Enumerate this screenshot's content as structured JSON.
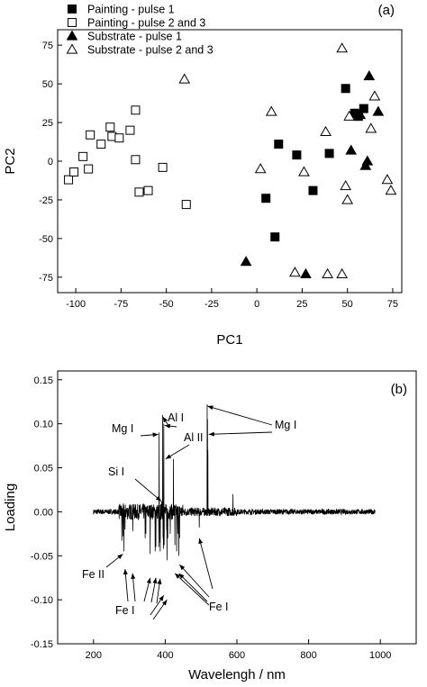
{
  "chart_data": [
    {
      "type": "scatter",
      "panel_label": "(a)",
      "xlabel": "PC1",
      "ylabel": "PC2",
      "xlim": [
        -110,
        80
      ],
      "ylim": [
        -85,
        85
      ],
      "xticks": [
        -100,
        -75,
        -50,
        -25,
        0,
        25,
        50,
        75
      ],
      "yticks": [
        -75,
        -50,
        -25,
        0,
        25,
        50,
        75
      ],
      "legend_position": "top-left",
      "series": [
        {
          "name": "Painting - pulse 1",
          "marker": "filled-square",
          "points": [
            [
              5,
              -24
            ],
            [
              10,
              -49
            ],
            [
              12,
              11
            ],
            [
              22,
              4
            ],
            [
              31,
              -19
            ],
            [
              40,
              5
            ],
            [
              49,
              47
            ],
            [
              54,
              31
            ],
            [
              56,
              29
            ],
            [
              59,
              34
            ]
          ]
        },
        {
          "name": "Painting - pulse 2 and 3",
          "marker": "open-square",
          "points": [
            [
              -104,
              -12
            ],
            [
              -101,
              -7
            ],
            [
              -96,
              3
            ],
            [
              -93,
              -5
            ],
            [
              -92,
              17
            ],
            [
              -86,
              11
            ],
            [
              -81,
              22
            ],
            [
              -80,
              16
            ],
            [
              -76,
              15
            ],
            [
              -70,
              20
            ],
            [
              -67,
              1
            ],
            [
              -67,
              33
            ],
            [
              -65,
              -20
            ],
            [
              -60,
              -19
            ],
            [
              -52,
              -4
            ],
            [
              -39,
              -28
            ]
          ]
        },
        {
          "name": "Substrate - pulse 1",
          "marker": "filled-triangle",
          "points": [
            [
              -6,
              -65
            ],
            [
              27,
              -73
            ],
            [
              52,
              7
            ],
            [
              57,
              30
            ],
            [
              60,
              -3
            ],
            [
              61,
              0
            ],
            [
              62,
              55
            ],
            [
              67,
              32
            ]
          ]
        },
        {
          "name": "Substrate - pulse 2 and 3",
          "marker": "open-triangle",
          "points": [
            [
              -40,
              53
            ],
            [
              2,
              -5
            ],
            [
              8,
              32
            ],
            [
              21,
              -72
            ],
            [
              26,
              -7
            ],
            [
              38,
              19
            ],
            [
              39,
              -73
            ],
            [
              47,
              -73
            ],
            [
              47,
              73
            ],
            [
              49,
              -16
            ],
            [
              50,
              -25
            ],
            [
              51,
              29
            ],
            [
              63,
              21
            ],
            [
              65,
              42
            ],
            [
              72,
              -12
            ],
            [
              74,
              -19
            ]
          ]
        }
      ]
    },
    {
      "type": "line",
      "panel_label": "(b)",
      "xlabel": "Wavelengh / nm",
      "ylabel": "Loading",
      "xlim": [
        100,
        1100
      ],
      "ylim": [
        -0.15,
        0.16
      ],
      "xticks": [
        200,
        400,
        600,
        800,
        1000
      ],
      "yticks": [
        -0.15,
        -0.1,
        -0.05,
        0.0,
        0.05,
        0.1,
        0.15
      ],
      "line_range": [
        200,
        985
      ],
      "noise_amplitude": 0.003,
      "peaks": [
        [
          279,
          -0.033
        ],
        [
          282,
          -0.028
        ],
        [
          285,
          -0.045
        ],
        [
          288,
          -0.02
        ],
        [
          309,
          0.008
        ],
        [
          309.5,
          -0.022
        ],
        [
          344,
          -0.03
        ],
        [
          346,
          -0.025
        ],
        [
          358,
          -0.048
        ],
        [
          372,
          -0.045
        ],
        [
          374,
          -0.04
        ],
        [
          382,
          -0.04
        ],
        [
          383,
          0.09
        ],
        [
          385,
          -0.035
        ],
        [
          386,
          -0.045
        ],
        [
          390,
          0.012
        ],
        [
          393,
          0.11
        ],
        [
          394,
          -0.03
        ],
        [
          395,
          -0.042
        ],
        [
          396,
          0.1
        ],
        [
          397,
          -0.038
        ],
        [
          404,
          -0.02
        ],
        [
          405,
          -0.055
        ],
        [
          407,
          -0.03
        ],
        [
          414,
          -0.025
        ],
        [
          423,
          0.06
        ],
        [
          427,
          -0.038
        ],
        [
          432,
          -0.045
        ],
        [
          435,
          -0.025
        ],
        [
          438,
          -0.05
        ],
        [
          440,
          -0.03
        ],
        [
          495,
          -0.018
        ],
        [
          517,
          0.122
        ],
        [
          518,
          0.105
        ],
        [
          519,
          0.07
        ],
        [
          589,
          0.02
        ]
      ],
      "annotations": [
        "Mg I",
        "Al I",
        "Al II",
        "Mg I",
        "Si I",
        "Fe II",
        "Fe I",
        "Fe I"
      ],
      "panel_label_text": "(b)"
    }
  ],
  "panel_a": {
    "label": "(a)",
    "xlabel": "PC1",
    "ylabel": "PC2"
  },
  "panel_b": {
    "label": "(b)",
    "xlabel": "Wavelengh / nm",
    "ylabel": "Loading"
  },
  "annotations": {
    "mg1_left": "Mg I",
    "al1": "Al I",
    "al2": "Al II",
    "mg1_right": "Mg I",
    "si1": "Si I",
    "fe2": "Fe II",
    "fe1_left": "Fe I",
    "fe1_right": "Fe I"
  },
  "legend": [
    {
      "label": "Painting - pulse 1"
    },
    {
      "label": "Painting - pulse 2 and 3"
    },
    {
      "label": "Substrate - pulse 1"
    },
    {
      "label": "Substrate - pulse 2 and 3"
    }
  ]
}
